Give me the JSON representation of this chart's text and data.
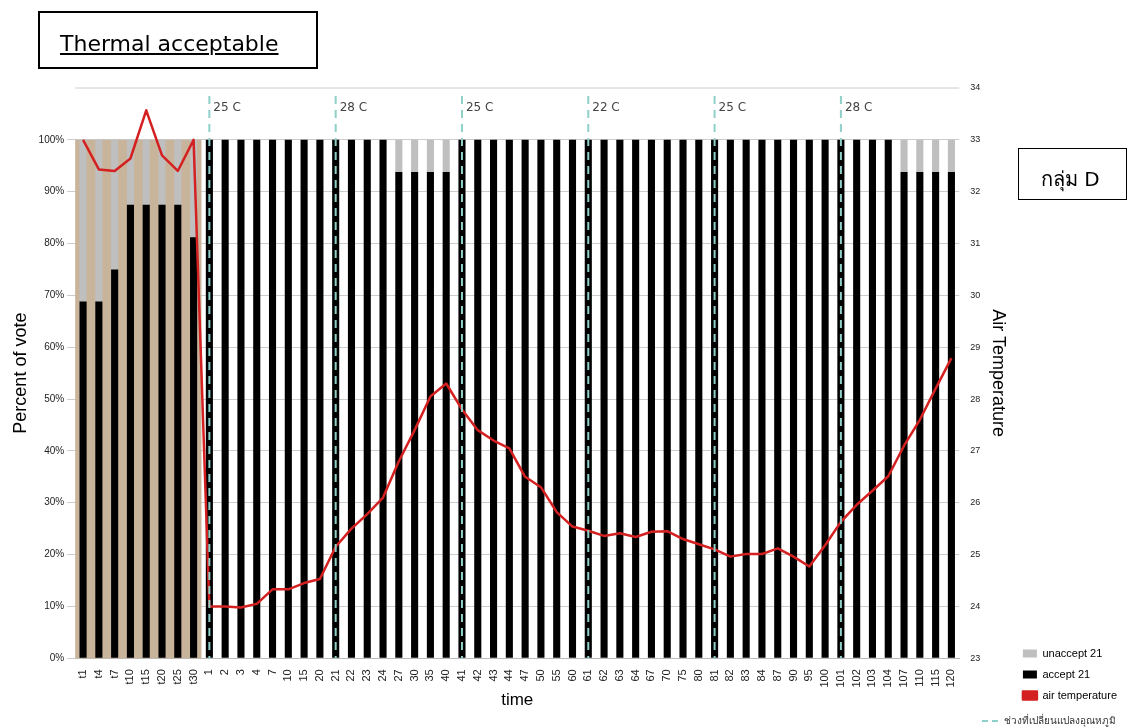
{
  "chart_data": {
    "type": "bar",
    "title": "Thermal acceptable",
    "xlabel": "time",
    "ylabel": "Percent of vote",
    "y2label": "Air Temperature",
    "categories": [
      "t1",
      "t4",
      "t7",
      "t10",
      "t15",
      "t20",
      "t25",
      "t30",
      "1",
      "2",
      "3",
      "4",
      "7",
      "10",
      "15",
      "20",
      "21",
      "22",
      "23",
      "24",
      "27",
      "30",
      "35",
      "40",
      "41",
      "42",
      "43",
      "44",
      "47",
      "50",
      "55",
      "60",
      "61",
      "62",
      "63",
      "64",
      "67",
      "70",
      "75",
      "80",
      "81",
      "82",
      "83",
      "84",
      "87",
      "90",
      "95",
      "100",
      "101",
      "102",
      "103",
      "104",
      "107",
      "110",
      "115",
      "120"
    ],
    "stacked": true,
    "series": [
      {
        "name": "accept 21",
        "color": "#000000",
        "values": [
          68.8,
          68.8,
          75,
          87.5,
          87.5,
          87.5,
          87.5,
          81.2,
          100,
          100,
          100,
          100,
          100,
          100,
          100,
          100,
          100,
          100,
          100,
          100,
          93.8,
          93.8,
          93.8,
          93.8,
          100,
          100,
          100,
          100,
          100,
          100,
          100,
          100,
          100,
          100,
          100,
          100,
          100,
          100,
          100,
          100,
          100,
          100,
          100,
          100,
          100,
          100,
          100,
          100,
          100,
          100,
          100,
          100,
          93.8,
          93.8,
          93.8,
          93.8
        ]
      },
      {
        "name": "unaccept 21",
        "color": "#bfbfbf",
        "values": [
          31.2,
          31.2,
          25,
          12.5,
          12.5,
          12.5,
          12.5,
          18.8,
          0,
          0,
          0,
          0,
          0,
          0,
          0,
          0,
          0,
          0,
          0,
          0,
          6.2,
          6.2,
          6.2,
          6.2,
          0,
          0,
          0,
          0,
          0,
          0,
          0,
          0,
          0,
          0,
          0,
          0,
          0,
          0,
          0,
          0,
          0,
          0,
          0,
          0,
          0,
          0,
          0,
          0,
          0,
          0,
          0,
          0,
          6.2,
          6.2,
          6.2,
          6.2
        ]
      },
      {
        "name": "air temperature",
        "type": "line",
        "axis": "y2",
        "color": "#d42020",
        "values": [
          33.0,
          32.43,
          32.4,
          32.64,
          33.57,
          32.7,
          32.4,
          33.0,
          24.0,
          24.0,
          23.98,
          24.05,
          24.33,
          24.33,
          24.45,
          24.53,
          25.15,
          25.5,
          25.78,
          26.1,
          26.8,
          27.4,
          28.05,
          28.3,
          27.8,
          27.4,
          27.2,
          27.05,
          26.5,
          26.3,
          25.82,
          25.54,
          25.46,
          25.36,
          25.41,
          25.34,
          25.44,
          25.45,
          25.3,
          25.2,
          25.1,
          24.96,
          25.01,
          25.01,
          25.12,
          24.96,
          24.77,
          25.18,
          25.63,
          25.96,
          26.23,
          26.51,
          27.1,
          27.6,
          28.2,
          28.79
        ]
      }
    ],
    "ylim": [
      0,
      110
    ],
    "yticks": [
      {
        "value": 0,
        "label": "0%"
      },
      {
        "value": 10,
        "label": "10%"
      },
      {
        "value": 20,
        "label": "20%"
      },
      {
        "value": 30,
        "label": "30%"
      },
      {
        "value": 40,
        "label": "40%"
      },
      {
        "value": 50,
        "label": "50%"
      },
      {
        "value": 60,
        "label": "60%"
      },
      {
        "value": 70,
        "label": "70%"
      },
      {
        "value": 80,
        "label": "80%"
      },
      {
        "value": 90,
        "label": "90%"
      },
      {
        "value": 100,
        "label": "100%"
      }
    ],
    "y2lim": [
      23,
      34
    ],
    "y2ticks": [
      23,
      24,
      25,
      26,
      27,
      28,
      29,
      30,
      31,
      32,
      33,
      34
    ],
    "ref_lines": [
      {
        "axis": "x",
        "value": "1",
        "label": "25 C",
        "color": "#8fd0c8",
        "line_style": "dashed"
      },
      {
        "axis": "x",
        "value": "21",
        "label": "28 C",
        "color": "#8fd0c8",
        "line_style": "dashed"
      },
      {
        "axis": "x",
        "value": "41",
        "label": "25 C",
        "color": "#8fd0c8",
        "line_style": "dashed"
      },
      {
        "axis": "x",
        "value": "61",
        "label": "22 C",
        "color": "#8fd0c8",
        "line_style": "dashed"
      },
      {
        "axis": "x",
        "value": "81",
        "label": "25 C",
        "color": "#8fd0c8",
        "line_style": "dashed"
      },
      {
        "axis": "x",
        "value": "101",
        "label": "28 C",
        "color": "#8fd0c8",
        "line_style": "dashed"
      }
    ],
    "bands": [
      {
        "axis": "x",
        "from": "t1",
        "to": "t30",
        "color": "#c8b39b"
      }
    ],
    "annotations": [
      "กลุ่ม D",
      "ช่วงที่เปลี่ยนแปลงอุณหภูมิ"
    ],
    "grid": "y",
    "legend": "bottom right",
    "marker": "none"
  }
}
